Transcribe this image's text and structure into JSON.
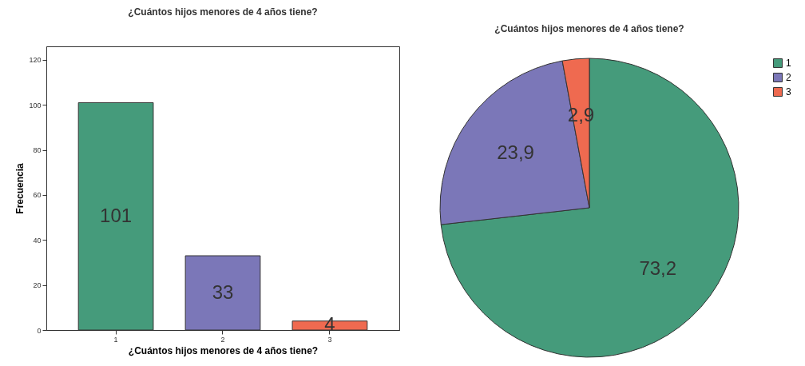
{
  "chart_data": [
    {
      "type": "bar",
      "title": "¿Cuántos hijos menores de 4 años tiene?",
      "xlabel": "¿Cuántos hijos menores de 4 años tiene?",
      "ylabel": "Frecuencia",
      "categories": [
        "1",
        "2",
        "3"
      ],
      "values": [
        101,
        33,
        4
      ],
      "colors": [
        "#459b7b",
        "#7b77b8",
        "#ef6a50"
      ],
      "ylim": [
        0,
        126
      ],
      "yticks": [
        0,
        20,
        40,
        60,
        80,
        100,
        120
      ],
      "data_labels": true
    },
    {
      "type": "pie",
      "title": "¿Cuántos hijos menores de 4 años tiene?",
      "categories": [
        "1",
        "2",
        "3"
      ],
      "values": [
        73.2,
        23.9,
        2.9
      ],
      "colors": [
        "#459b7b",
        "#7b77b8",
        "#ef6a50"
      ],
      "value_labels": [
        "73,2",
        "23,9",
        "2,9"
      ],
      "legend": "top right"
    }
  ]
}
